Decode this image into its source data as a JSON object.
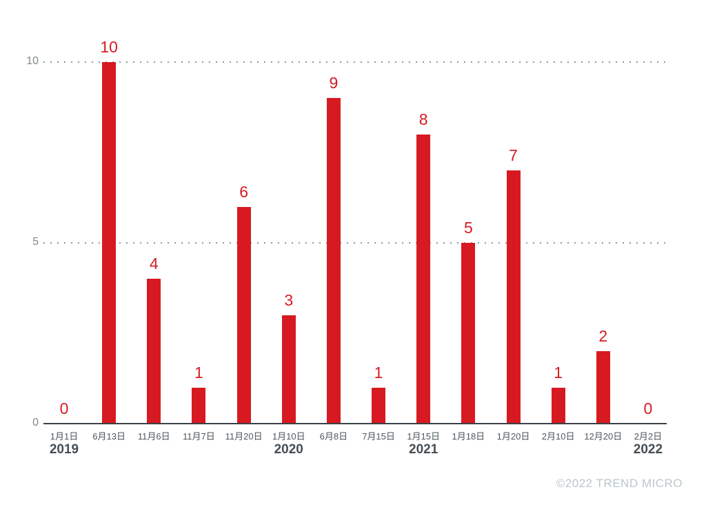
{
  "watermark": {
    "text": "©2022 TREND MICRO"
  },
  "chart_data": {
    "type": "bar",
    "title": "",
    "xlabel": "",
    "ylabel": "",
    "categories": [
      "1月1日",
      "6月13日",
      "11月6日",
      "11月7日",
      "11月20日",
      "1月10日",
      "6月8日",
      "7月15日",
      "1月15日",
      "1月18日",
      "1月20日",
      "2月10日",
      "12月20日",
      "2月2日"
    ],
    "values": [
      0,
      10,
      4,
      1,
      6,
      3,
      9,
      1,
      8,
      5,
      7,
      1,
      2,
      0
    ],
    "year_labels": [
      {
        "index": 0,
        "label": "2019"
      },
      {
        "index": 5,
        "label": "2020"
      },
      {
        "index": 8,
        "label": "2021"
      },
      {
        "index": 13,
        "label": "2022"
      }
    ],
    "yticks": [
      0,
      5,
      10
    ],
    "ylim": [
      0,
      10
    ],
    "grid": "horizontal dotted lines at y=5 and y=10",
    "legend": "none",
    "colors": {
      "bar": "#d71a21",
      "value_label": "#d71a21",
      "axis_line": "#3a4147",
      "gridline": "#8f979b",
      "ytick_label": "#7f888c",
      "xtick_label": "#4d565c",
      "year_label": "#454e54",
      "watermark": "#b9c7cb",
      "background": "#ffffff"
    }
  }
}
